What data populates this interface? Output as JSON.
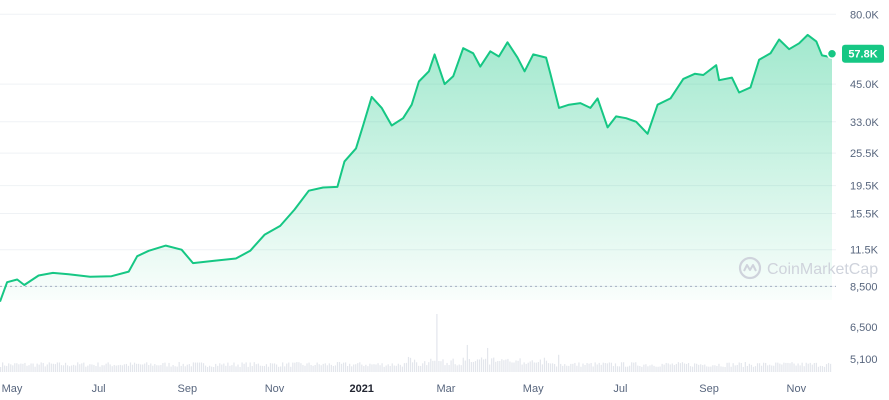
{
  "chart_data": {
    "type": "area",
    "title": "",
    "xlabel": "",
    "ylabel": "",
    "price_scale": "log",
    "ylim": [
      7600,
      90000
    ],
    "y_ticks": [
      80000,
      57800,
      45000,
      33000,
      25500,
      19500,
      15500,
      11500,
      8500
    ],
    "y_tick_labels": [
      "80.0K",
      "57.8K",
      "45.0K",
      "33.0K",
      "25.5K",
      "19.5K",
      "15.5K",
      "11.5K",
      "8,500"
    ],
    "volume_ticks": [
      6500,
      5100
    ],
    "volume_tick_labels": [
      "6,500",
      "5,100"
    ],
    "x_range": [
      "2020-04-23",
      "2021-11-26"
    ],
    "x_tick_labels": [
      {
        "label": "May",
        "date": "2020-05-01",
        "bold": false
      },
      {
        "label": "Jul",
        "date": "2020-07-01",
        "bold": false
      },
      {
        "label": "Sep",
        "date": "2020-09-01",
        "bold": false
      },
      {
        "label": "Nov",
        "date": "2020-11-01",
        "bold": false
      },
      {
        "label": "2021",
        "date": "2021-01-01",
        "bold": true
      },
      {
        "label": "Mar",
        "date": "2021-03-01",
        "bold": false
      },
      {
        "label": "May",
        "date": "2021-05-01",
        "bold": false
      },
      {
        "label": "Jul",
        "date": "2021-07-01",
        "bold": false
      },
      {
        "label": "Sep",
        "date": "2021-09-01",
        "bold": false
      },
      {
        "label": "Nov",
        "date": "2021-11-01",
        "bold": false
      }
    ],
    "baseline_reference": 8500,
    "current_price_label": "57.8K",
    "series": [
      {
        "points": [
          [
            "2020-04-23",
            7500
          ],
          [
            "2020-04-28",
            8800
          ],
          [
            "2020-05-05",
            9000
          ],
          [
            "2020-05-10",
            8600
          ],
          [
            "2020-05-20",
            9300
          ],
          [
            "2020-05-30",
            9500
          ],
          [
            "2020-06-10",
            9400
          ],
          [
            "2020-06-25",
            9200
          ],
          [
            "2020-07-10",
            9250
          ],
          [
            "2020-07-22",
            9600
          ],
          [
            "2020-07-28",
            10900
          ],
          [
            "2020-08-05",
            11400
          ],
          [
            "2020-08-17",
            11900
          ],
          [
            "2020-08-28",
            11500
          ],
          [
            "2020-09-05",
            10300
          ],
          [
            "2020-09-20",
            10500
          ],
          [
            "2020-10-05",
            10700
          ],
          [
            "2020-10-15",
            11400
          ],
          [
            "2020-10-25",
            13000
          ],
          [
            "2020-11-05",
            14000
          ],
          [
            "2020-11-15",
            16000
          ],
          [
            "2020-11-25",
            18700
          ],
          [
            "2020-12-05",
            19200
          ],
          [
            "2020-12-15",
            19300
          ],
          [
            "2020-12-20",
            23800
          ],
          [
            "2020-12-28",
            26500
          ],
          [
            "2021-01-02",
            32000
          ],
          [
            "2021-01-08",
            40500
          ],
          [
            "2021-01-15",
            37000
          ],
          [
            "2021-01-22",
            32000
          ],
          [
            "2021-01-30",
            34000
          ],
          [
            "2021-02-05",
            38000
          ],
          [
            "2021-02-10",
            46000
          ],
          [
            "2021-02-17",
            50000
          ],
          [
            "2021-02-21",
            57500
          ],
          [
            "2021-02-28",
            45000
          ],
          [
            "2021-03-06",
            48000
          ],
          [
            "2021-03-13",
            60500
          ],
          [
            "2021-03-20",
            58000
          ],
          [
            "2021-03-25",
            52000
          ],
          [
            "2021-04-01",
            59000
          ],
          [
            "2021-04-07",
            56500
          ],
          [
            "2021-04-13",
            63500
          ],
          [
            "2021-04-20",
            56000
          ],
          [
            "2021-04-25",
            50000
          ],
          [
            "2021-05-01",
            57500
          ],
          [
            "2021-05-10",
            56000
          ],
          [
            "2021-05-13",
            49000
          ],
          [
            "2021-05-19",
            37000
          ],
          [
            "2021-05-26",
            38000
          ],
          [
            "2021-06-03",
            38500
          ],
          [
            "2021-06-10",
            37000
          ],
          [
            "2021-06-15",
            40000
          ],
          [
            "2021-06-22",
            31500
          ],
          [
            "2021-06-28",
            34500
          ],
          [
            "2021-07-05",
            34000
          ],
          [
            "2021-07-12",
            33000
          ],
          [
            "2021-07-20",
            29900
          ],
          [
            "2021-07-27",
            38000
          ],
          [
            "2021-08-05",
            40000
          ],
          [
            "2021-08-14",
            47000
          ],
          [
            "2021-08-22",
            49000
          ],
          [
            "2021-08-28",
            48500
          ],
          [
            "2021-09-06",
            52600
          ],
          [
            "2021-09-08",
            46500
          ],
          [
            "2021-09-17",
            47500
          ],
          [
            "2021-09-22",
            42000
          ],
          [
            "2021-09-30",
            43800
          ],
          [
            "2021-10-06",
            55000
          ],
          [
            "2021-10-14",
            58000
          ],
          [
            "2021-10-20",
            65000
          ],
          [
            "2021-10-27",
            60000
          ],
          [
            "2021-11-03",
            63000
          ],
          [
            "2021-11-09",
            67500
          ],
          [
            "2021-11-15",
            64000
          ],
          [
            "2021-11-19",
            57000
          ],
          [
            "2021-11-23",
            56500
          ],
          [
            "2021-11-26",
            57800
          ]
        ]
      }
    ],
    "colors": {
      "line": "#16c784",
      "area_top": "#16c784",
      "badge": "#16c784",
      "volume": "#e3e6ec",
      "grid": "#eff2f5",
      "baseline": "#a6b0c3"
    }
  },
  "watermark": {
    "icon": "coinmarketcap-logo-icon",
    "text": "CoinMarketCap"
  }
}
